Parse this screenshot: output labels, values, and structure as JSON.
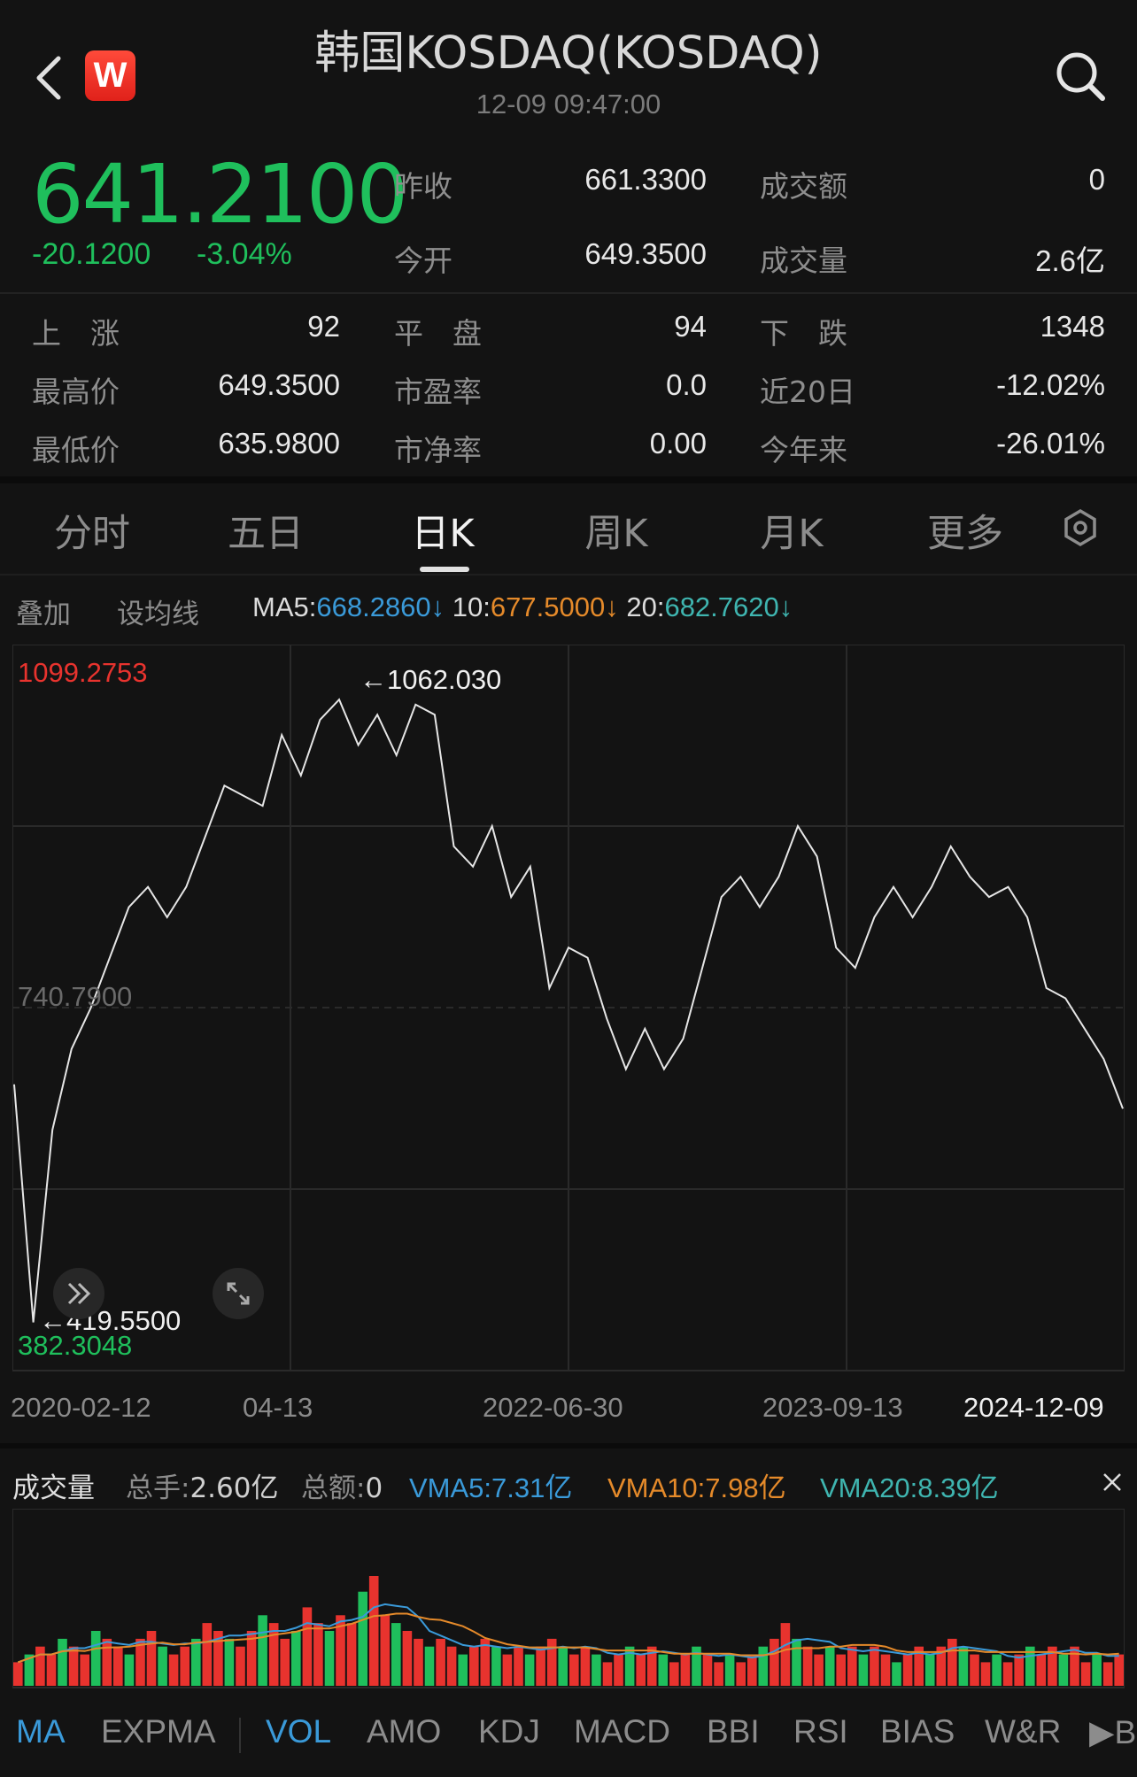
{
  "header": {
    "title": "韩国KOSDAQ(KOSDAQ)",
    "time": "12-09 09:47:00",
    "logo_letter": "W"
  },
  "quote": {
    "price": "641.2100",
    "change": "-20.1200",
    "change_pct": "-3.04%",
    "prev_close_label": "昨收",
    "prev_close": "661.3300",
    "open_label": "今开",
    "open": "649.3500",
    "turnover_label": "成交额",
    "turnover": "0",
    "volume_label": "成交量",
    "volume": "2.6亿"
  },
  "stats": {
    "up_label": "上　涨",
    "up": "92",
    "flat_label": "平　盘",
    "flat": "94",
    "down_label": "下　跌",
    "down": "1348",
    "high_label": "最高价",
    "high": "649.3500",
    "pe_label": "市盈率",
    "pe": "0.0",
    "d20_label": "近20日",
    "d20": "-12.02%",
    "low_label": "最低价",
    "low": "635.9800",
    "pb_label": "市净率",
    "pb": "0.00",
    "ytd_label": "今年来",
    "ytd": "-26.01%"
  },
  "tabs": [
    "分时",
    "五日",
    "日K",
    "周K",
    "月K",
    "更多"
  ],
  "active_tab": "日K",
  "ma_bar": {
    "overlay": "叠加",
    "set_ma": "设均线",
    "ma5_label": "MA5:",
    "ma5": "668.2860↓",
    "ma10_label": "10:",
    "ma10": "677.5000↓",
    "ma20_label": "20:",
    "ma20": "682.7620↓"
  },
  "colors": {
    "down_green": "#1fbf5c",
    "up_red": "#e8332e",
    "ma5_blue": "#3a9ad9",
    "ma10_orange": "#e58a2a",
    "ma20_teal": "#3fb5b0",
    "line": "#e6e6e6"
  },
  "chart_data": {
    "type": "line",
    "title": "",
    "y_max_label": "1099.2753",
    "y_mid_label": "740.7900",
    "y_min_label": "382.3048",
    "ylim": [
      382.3048,
      1099.2753
    ],
    "x_tick_labels": [
      "2020-02-12",
      "04-13",
      "2022-06-30",
      "2023-09-13",
      "2024-12-09"
    ],
    "high_annotation": "←1062.030",
    "low_annotation": "←419.5500",
    "high_value": 1062.03,
    "low_value": 419.55,
    "x": [
      "2020-02",
      "2020-03",
      "2020-04",
      "2020-05",
      "2020-06",
      "2020-07",
      "2020-08",
      "2020-09",
      "2020-10",
      "2020-11",
      "2020-12",
      "2021-01",
      "2021-02",
      "2021-03",
      "2021-04",
      "2021-05",
      "2021-06",
      "2021-07",
      "2021-08",
      "2021-09",
      "2021-10",
      "2021-11",
      "2021-12",
      "2022-01",
      "2022-02",
      "2022-03",
      "2022-04",
      "2022-05",
      "2022-06",
      "2022-07",
      "2022-08",
      "2022-09",
      "2022-10",
      "2022-11",
      "2022-12",
      "2023-01",
      "2023-02",
      "2023-03",
      "2023-04",
      "2023-05",
      "2023-06",
      "2023-07",
      "2023-08",
      "2023-09",
      "2023-10",
      "2023-11",
      "2023-12",
      "2024-01",
      "2024-02",
      "2024-03",
      "2024-04",
      "2024-05",
      "2024-06",
      "2024-07",
      "2024-08",
      "2024-09",
      "2024-10",
      "2024-11",
      "2024-12"
    ],
    "y": [
      665,
      430,
      620,
      700,
      740,
      790,
      840,
      860,
      830,
      860,
      910,
      960,
      950,
      940,
      1010,
      970,
      1025,
      1045,
      1000,
      1030,
      990,
      1040,
      1030,
      900,
      880,
      920,
      850,
      880,
      760,
      800,
      790,
      730,
      680,
      720,
      680,
      710,
      780,
      850,
      870,
      840,
      870,
      920,
      890,
      800,
      780,
      830,
      860,
      830,
      860,
      900,
      870,
      850,
      860,
      830,
      760,
      750,
      720,
      690,
      641
    ]
  },
  "volume": {
    "title": "成交量",
    "total_hands_label": "总手:",
    "total_hands": "2.60亿",
    "total_amount_label": "总额:",
    "total_amount": "0",
    "vma5_label": "VMA5:",
    "vma5": "7.31亿",
    "vma10_label": "VMA10:",
    "vma10": "7.98亿",
    "vma20_label": "VMA20:",
    "vma20": "8.39亿",
    "bars": [
      3,
      4,
      5,
      4,
      6,
      5,
      4,
      7,
      6,
      5,
      4,
      6,
      7,
      5,
      4,
      5,
      6,
      8,
      7,
      6,
      5,
      7,
      9,
      8,
      6,
      7,
      10,
      8,
      7,
      9,
      8,
      12,
      14,
      9,
      8,
      7,
      6,
      5,
      6,
      5,
      4,
      5,
      6,
      5,
      4,
      5,
      4,
      5,
      6,
      5,
      4,
      5,
      4,
      3,
      4,
      5,
      4,
      5,
      4,
      3,
      4,
      5,
      4,
      3,
      4,
      3,
      4,
      5,
      6,
      8,
      6,
      5,
      4,
      5,
      4,
      5,
      4,
      5,
      4,
      3,
      4,
      5,
      4,
      5,
      6,
      5,
      4,
      3,
      4,
      3,
      4,
      5,
      4,
      5,
      4,
      5,
      3,
      4,
      3,
      4
    ]
  },
  "indicator_tabs": [
    "MA",
    "EXPMA",
    "VOL",
    "AMO",
    "KDJ",
    "MACD",
    "BBI",
    "RSI",
    "BIAS",
    "W&R",
    "▶BO"
  ],
  "active_indicators": [
    "MA",
    "VOL"
  ]
}
